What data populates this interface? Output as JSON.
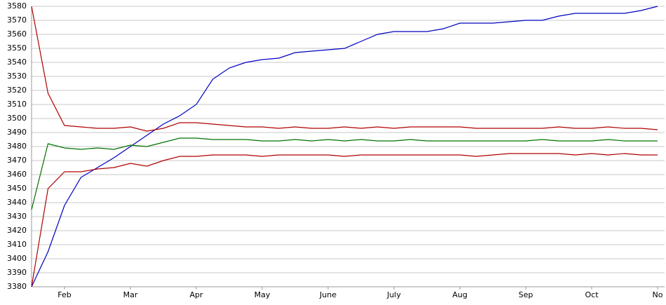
{
  "chart_data": {
    "type": "line",
    "categories": [
      null,
      null,
      "Feb",
      null,
      null,
      null,
      "Mar",
      null,
      null,
      null,
      "Apr",
      null,
      null,
      null,
      "May",
      null,
      null,
      null,
      "June",
      null,
      null,
      null,
      "July",
      null,
      null,
      null,
      "Aug",
      null,
      null,
      null,
      "Sep",
      null,
      null,
      null,
      "Oct",
      null,
      null,
      null,
      "No"
    ],
    "series": [
      {
        "color": "#0000c0",
        "values": [
          3380,
          3405,
          3438,
          3458,
          3465,
          3472,
          3480,
          3488,
          3496,
          3502,
          3510,
          3528,
          3536,
          3540,
          3542,
          3543,
          3547,
          3548,
          3549,
          3550,
          3555,
          3560,
          3562,
          3562,
          3562,
          3564,
          3568,
          3568,
          3568,
          3569,
          3570,
          3570,
          3573,
          3575,
          3575,
          3575,
          3575,
          3577,
          3580
        ]
      },
      {
        "color": "#b00000",
        "values": [
          3580,
          3518,
          3495,
          3494,
          3493,
          3493,
          3494,
          3491,
          3493,
          3497,
          3497,
          3496,
          3495,
          3494,
          3494,
          3493,
          3494,
          3493,
          3493,
          3494,
          3493,
          3494,
          3493,
          3494,
          3494,
          3494,
          3494,
          3493,
          3493,
          3493,
          3493,
          3493,
          3494,
          3493,
          3493,
          3494,
          3493,
          3493,
          3492
        ]
      },
      {
        "color": "#b00000",
        "values": [
          3380,
          3450,
          3462,
          3462,
          3464,
          3465,
          3468,
          3466,
          3470,
          3473,
          3473,
          3474,
          3474,
          3474,
          3473,
          3474,
          3474,
          3474,
          3474,
          3473,
          3474,
          3474,
          3474,
          3474,
          3474,
          3474,
          3474,
          3473,
          3474,
          3475,
          3475,
          3475,
          3475,
          3474,
          3475,
          3474,
          3475,
          3474,
          3474
        ]
      },
      {
        "color": "#007000",
        "values": [
          3435,
          3482,
          3479,
          3478,
          3479,
          3478,
          3481,
          3480,
          3483,
          3486,
          3486,
          3485,
          3485,
          3485,
          3484,
          3484,
          3485,
          3484,
          3485,
          3484,
          3485,
          3484,
          3484,
          3485,
          3484,
          3484,
          3484,
          3484,
          3484,
          3484,
          3484,
          3485,
          3484,
          3484,
          3484,
          3485,
          3484,
          3484,
          3484
        ]
      }
    ],
    "ylim": [
      3380,
      3580
    ],
    "yticks": [
      3380,
      3390,
      3400,
      3410,
      3420,
      3430,
      3440,
      3450,
      3460,
      3470,
      3480,
      3490,
      3500,
      3510,
      3520,
      3530,
      3540,
      3550,
      3560,
      3570,
      3580
    ],
    "grid": true
  }
}
